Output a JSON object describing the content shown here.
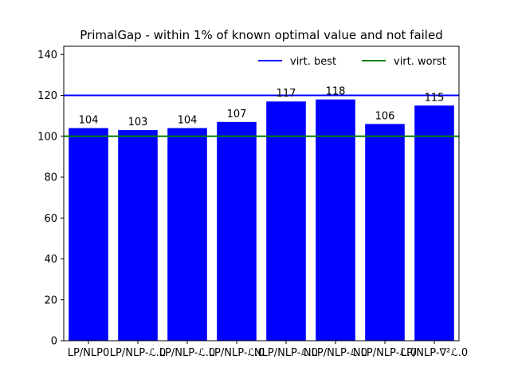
{
  "chart_data": {
    "type": "bar",
    "title": "PrimalGap - within 1% of known optimal value and not failed",
    "xlabel": "",
    "ylabel": "",
    "categories": [
      "LP/NLP0",
      "LP/NLP-ℒ.0",
      "LP/NLP-ℒ.0",
      "LP/NLP-ℒ.0",
      "NLP/NLP-ℒ.0",
      "NLP/NLP-ℒ.0",
      "NLP/NLP-ℒ.0",
      "LP/NLP-∇²ℒ.0"
    ],
    "values": [
      104,
      103,
      104,
      107,
      117,
      118,
      106,
      115
    ],
    "data_labels": [
      "104",
      "103",
      "104",
      "107",
      "117",
      "118",
      "106",
      "115"
    ],
    "ylim": [
      0,
      144
    ],
    "yticks": [
      0,
      20,
      40,
      60,
      80,
      100,
      120,
      140
    ],
    "bar_color": "#0000ff",
    "reference_lines": [
      {
        "name": "virt. best",
        "value": 120,
        "color": "#0000ff"
      },
      {
        "name": "virt. worst",
        "value": 100,
        "color": "#008000"
      }
    ],
    "legend_position": "top-right",
    "grid": false
  }
}
